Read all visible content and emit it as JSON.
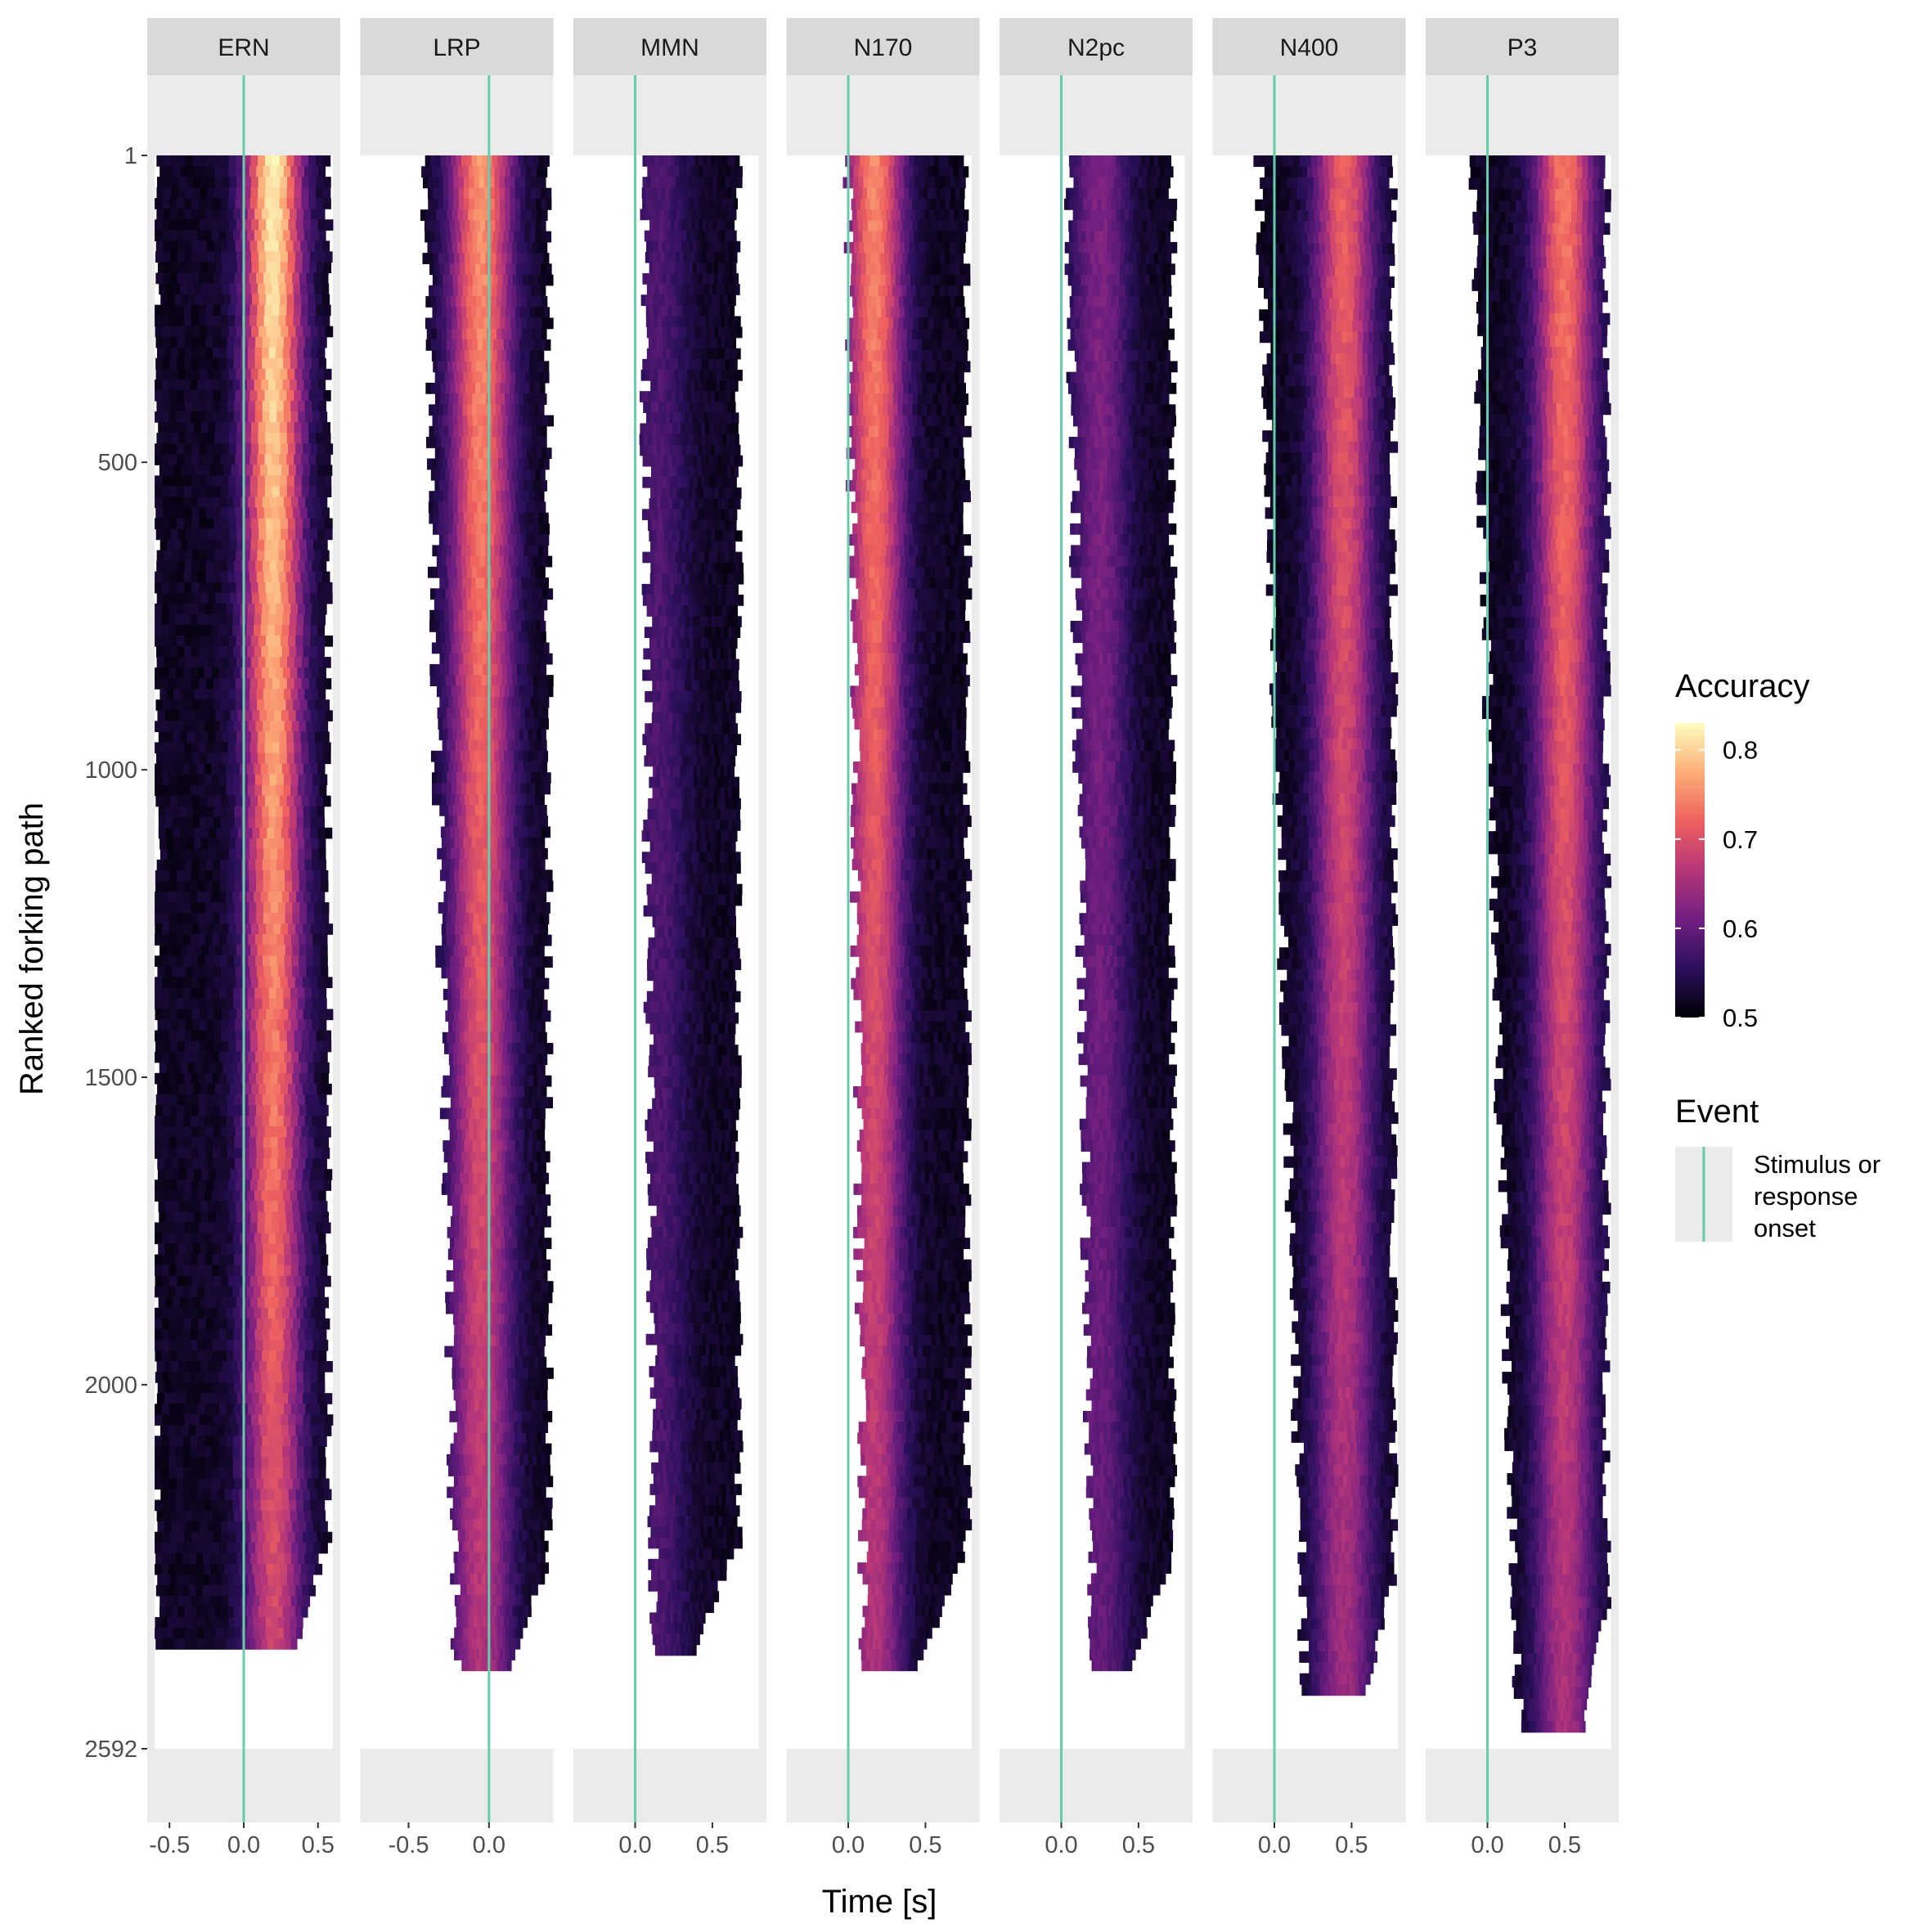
{
  "chart_data": {
    "type": "heatmap",
    "xlabel": "Time [s]",
    "ylabel": "Ranked forking path",
    "y_ticks": [
      1,
      500,
      1000,
      1500,
      2000,
      2592
    ],
    "ylim": [
      1,
      2592
    ],
    "panels": [
      {
        "name": "ERN",
        "xlim": [
          -0.65,
          0.65
        ],
        "data_x": [
          -0.6,
          0.6
        ],
        "x_ticks": [
          -0.5,
          0.0,
          0.5
        ],
        "x_tick_labels": [
          "-0.5",
          "0.0",
          "0.5"
        ],
        "last_row": 2430,
        "peak_x": 0.2,
        "peak_acc": 0.82,
        "left_edge_start": -0.6,
        "left_edge_end": -0.6,
        "right_edge": 0.6
      },
      {
        "name": "LRP",
        "xlim": [
          -0.8,
          0.4
        ],
        "data_x": [
          -0.8,
          0.4
        ],
        "x_ticks": [
          -0.5,
          0.0
        ],
        "x_tick_labels": [
          "-0.5",
          "0.0"
        ],
        "last_row": 2465,
        "peak_x": -0.05,
        "peak_acc": 0.76,
        "left_edge_start": -0.4,
        "left_edge_end": -0.2,
        "right_edge": 0.4
      },
      {
        "name": "MMN",
        "xlim": [
          -0.4,
          0.85
        ],
        "data_x": [
          -0.4,
          0.8
        ],
        "x_ticks": [
          0.0,
          0.5
        ],
        "x_tick_labels": [
          "0.0",
          "0.5"
        ],
        "last_row": 2440,
        "peak_x": 0.15,
        "peak_acc": 0.58,
        "left_edge_start": 0.05,
        "left_edge_end": 0.12,
        "right_edge": 0.7
      },
      {
        "name": "N170",
        "xlim": [
          -0.4,
          0.85
        ],
        "data_x": [
          -0.4,
          0.8
        ],
        "x_ticks": [
          0.0,
          0.5
        ],
        "x_tick_labels": [
          "0.0",
          "0.5"
        ],
        "last_row": 2465,
        "peak_x": 0.17,
        "peak_acc": 0.75,
        "left_edge_start": 0.0,
        "left_edge_end": 0.1,
        "right_edge": 0.8
      },
      {
        "name": "N2pc",
        "xlim": [
          -0.4,
          0.85
        ],
        "data_x": [
          -0.4,
          0.8
        ],
        "x_ticks": [
          0.0,
          0.5
        ],
        "x_tick_labels": [
          "0.0",
          "0.5"
        ],
        "last_row": 2465,
        "peak_x": 0.25,
        "peak_acc": 0.62,
        "left_edge_start": 0.05,
        "left_edge_end": 0.2,
        "right_edge": 0.75
      },
      {
        "name": "N400",
        "xlim": [
          -0.4,
          0.85
        ],
        "data_x": [
          -0.4,
          0.8
        ],
        "x_ticks": [
          0.0,
          0.5
        ],
        "x_tick_labels": [
          "0.0",
          "0.5"
        ],
        "last_row": 2505,
        "peak_x": 0.45,
        "peak_acc": 0.72,
        "left_edge_start": -0.1,
        "left_edge_end": 0.2,
        "right_edge": 0.8
      },
      {
        "name": "P3",
        "xlim": [
          -0.4,
          0.85
        ],
        "data_x": [
          -0.4,
          0.8
        ],
        "x_ticks": [
          0.0,
          0.5
        ],
        "x_tick_labels": [
          "0.0",
          "0.5"
        ],
        "last_row": 2565,
        "peak_x": 0.5,
        "peak_acc": 0.74,
        "left_edge_start": -0.1,
        "left_edge_end": 0.2,
        "right_edge": 0.8
      }
    ],
    "event_line_x": 0.0,
    "legend": {
      "color_title": "Accuracy",
      "color_ticks": [
        0.8,
        0.7,
        0.6,
        0.5
      ],
      "color_tick_labels": [
        "0.8",
        "0.7",
        "0.6",
        "0.5"
      ],
      "color_range": [
        0.5,
        0.83
      ],
      "event_title": "Event",
      "event_lines": [
        "Stimulus or",
        "response",
        "onset"
      ]
    },
    "colors": {
      "panel_bg": "#ebebeb",
      "strip_bg": "#d9d9d9",
      "event_line": "#66cdaa",
      "gradient": [
        "#000004",
        "#2c105c",
        "#711f81",
        "#b63679",
        "#ee605e",
        "#fdae78",
        "#fcfdbf"
      ]
    }
  }
}
